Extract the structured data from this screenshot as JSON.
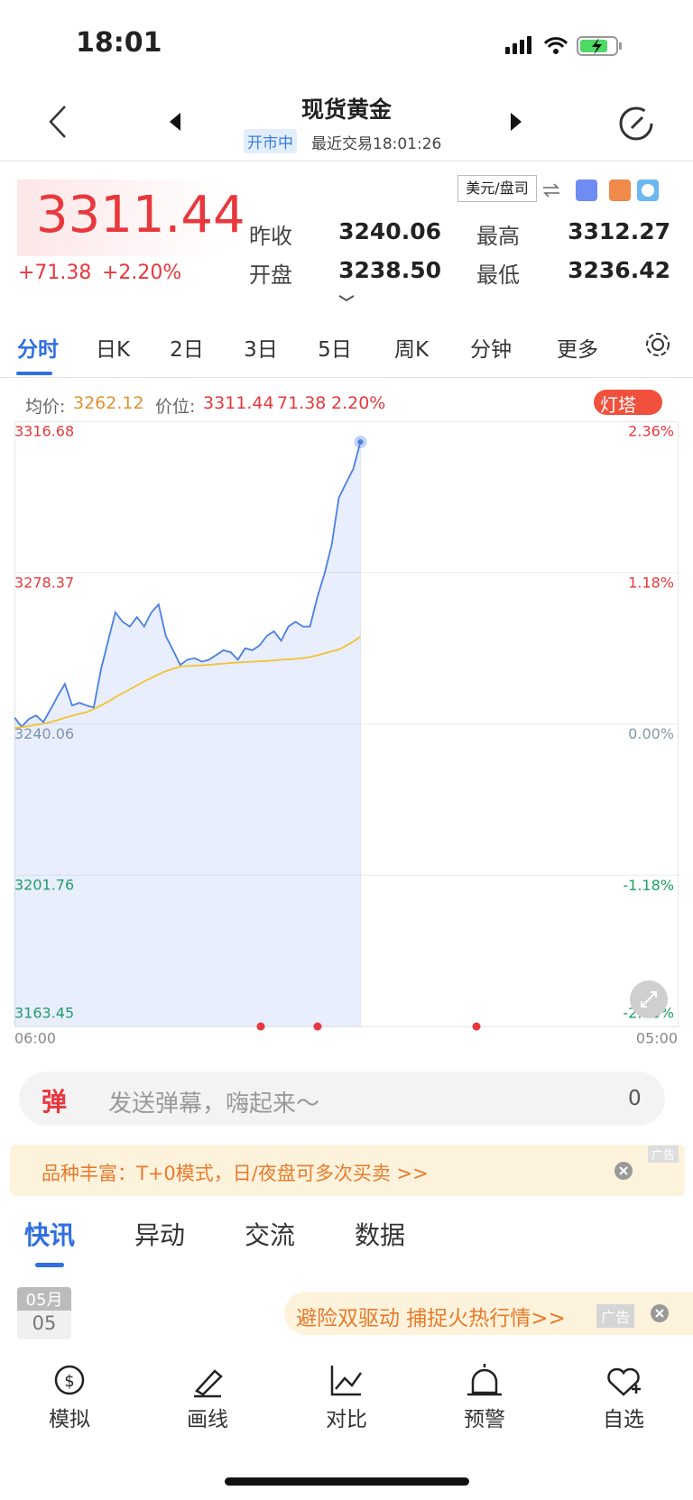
{
  "status_bar": {
    "time": "18:01"
  },
  "header": {
    "title": "现货黄金",
    "status": "开市中",
    "last_trade": "最近交易18:01:26"
  },
  "quote": {
    "price": "3311.44",
    "change": "+71.38",
    "change_pct": "+2.20%",
    "unit": "美元/盘司",
    "stats": [
      {
        "label": "昨收",
        "value": "3240.06"
      },
      {
        "label": "最高",
        "value": "3312.27"
      },
      {
        "label": "开盘",
        "value": "3238.50"
      },
      {
        "label": "最低",
        "value": "3236.42"
      }
    ]
  },
  "tabs": [
    "分时",
    "日K",
    "2日",
    "3日",
    "5日",
    "周K",
    "分钟",
    "更多"
  ],
  "info_bar": {
    "avg_label": "均价:",
    "avg": "3262.12",
    "price_label": "价位:",
    "price": "3311.44",
    "change": "71.38",
    "change_pct": "2.20%",
    "badge": "灯塔"
  },
  "chart_data": {
    "type": "line",
    "categories": [
      "06:00",
      null,
      null,
      null,
      null,
      null,
      null,
      null,
      null,
      null,
      null,
      null,
      null,
      null,
      null,
      null,
      null,
      null,
      null,
      null,
      null,
      null,
      null,
      null,
      null,
      null,
      null,
      null,
      null,
      null,
      null,
      null,
      null,
      null,
      null,
      null,
      null,
      null,
      null,
      null,
      null,
      null,
      null,
      null,
      null,
      null,
      null,
      null,
      null,
      null,
      null,
      null,
      null,
      null,
      null,
      null,
      null,
      null,
      null,
      null,
      null,
      null,
      null,
      null,
      null,
      null,
      null,
      null,
      null,
      null,
      null,
      null,
      null,
      null,
      null,
      null,
      null,
      null,
      null,
      null,
      null,
      null,
      null,
      null,
      null,
      null,
      null,
      null,
      null,
      null,
      null,
      null,
      "05:00"
    ],
    "series": [
      {
        "color": "#4a7fe0",
        "area": true,
        "values": [
          3241.7,
          3239.3,
          3241.3,
          3242.2,
          3240.5,
          3243.7,
          3247.1,
          3250.2,
          3244.7,
          3245.4,
          3244.7,
          3244.2,
          3253.8,
          3261.1,
          3268.3,
          3265.9,
          3264.7,
          3267.1,
          3264.7,
          3268.3,
          3270.3,
          3262.3,
          3258.7,
          3255.0,
          3256.3,
          3256.7,
          3255.8,
          3256.3,
          3257.5,
          3258.7,
          3258.2,
          3256.3,
          3259.2,
          3258.7,
          3259.9,
          3262.3,
          3263.5,
          3261.1,
          3264.7,
          3265.9,
          3264.7,
          3264.7,
          3272.0,
          3278.0,
          3285.3,
          3297.3,
          3301.0,
          3304.6,
          3311.44,
          null,
          null,
          null,
          null,
          null,
          null,
          null,
          null,
          null,
          null,
          null,
          null,
          null,
          null,
          null,
          null,
          null,
          null,
          null,
          null,
          null,
          null,
          null,
          null,
          null,
          null,
          null,
          null,
          null,
          null,
          null,
          null,
          null,
          null,
          null,
          null,
          null,
          null,
          null,
          null,
          null,
          null,
          null,
          null
        ]
      },
      {
        "color": "#f2c230",
        "area": false,
        "values": [
          3239.0,
          3239.2,
          3239.5,
          3239.8,
          3240.1,
          3240.5,
          3241.0,
          3241.6,
          3242.1,
          3242.6,
          3243.0,
          3243.8,
          3244.7,
          3245.7,
          3246.8,
          3247.8,
          3248.8,
          3249.8,
          3250.8,
          3251.7,
          3252.6,
          3253.4,
          3254.0,
          3254.6,
          3254.7,
          3254.8,
          3254.9,
          3255.0,
          3255.2,
          3255.3,
          3255.5,
          3255.6,
          3255.7,
          3255.8,
          3255.9,
          3256.0,
          3256.1,
          3256.3,
          3256.4,
          3256.5,
          3256.7,
          3257.0,
          3257.4,
          3257.9,
          3258.4,
          3258.9,
          3259.8,
          3260.9,
          3262.12,
          null,
          null,
          null,
          null,
          null,
          null,
          null,
          null,
          null,
          null,
          null,
          null,
          null,
          null,
          null,
          null,
          null,
          null,
          null,
          null,
          null,
          null,
          null,
          null,
          null,
          null,
          null,
          null,
          null,
          null,
          null,
          null,
          null,
          null,
          null,
          null,
          null,
          null,
          null,
          null,
          null,
          null,
          null,
          null
        ]
      }
    ],
    "ylim": [
      3163.45,
      3316.68
    ],
    "yticks": [
      3316.68,
      3278.37,
      3240.06,
      3201.76,
      3163.45
    ],
    "y2lim": [
      -2.36,
      2.36
    ],
    "y2ticks": [
      {
        "value": 2.36,
        "label": "2.36%"
      },
      {
        "value": 1.18,
        "label": "1.18%"
      },
      {
        "value": 0,
        "label": "0.00%"
      },
      {
        "value": -1.18,
        "label": "-1.18%"
      },
      {
        "value": -2.36,
        "label": "-2.36%"
      }
    ],
    "grid": true
  },
  "danmaku": {
    "icon": "弹",
    "placeholder": "发送弹幕，嗨起来～",
    "count": "0"
  },
  "ad_banner": {
    "text": "品种丰富：T+0模式，日/夜盘可多次买卖 >>",
    "tag": "广告"
  },
  "news_tabs": [
    "快讯",
    "异动",
    "交流",
    "数据"
  ],
  "news": {
    "month": "05月",
    "day": "05",
    "ad": "避险双驱动 捕捉火热行情>>",
    "ad_tag": "广告"
  },
  "bottom_nav": [
    "模拟",
    "画线",
    "对比",
    "预警",
    "自选"
  ]
}
